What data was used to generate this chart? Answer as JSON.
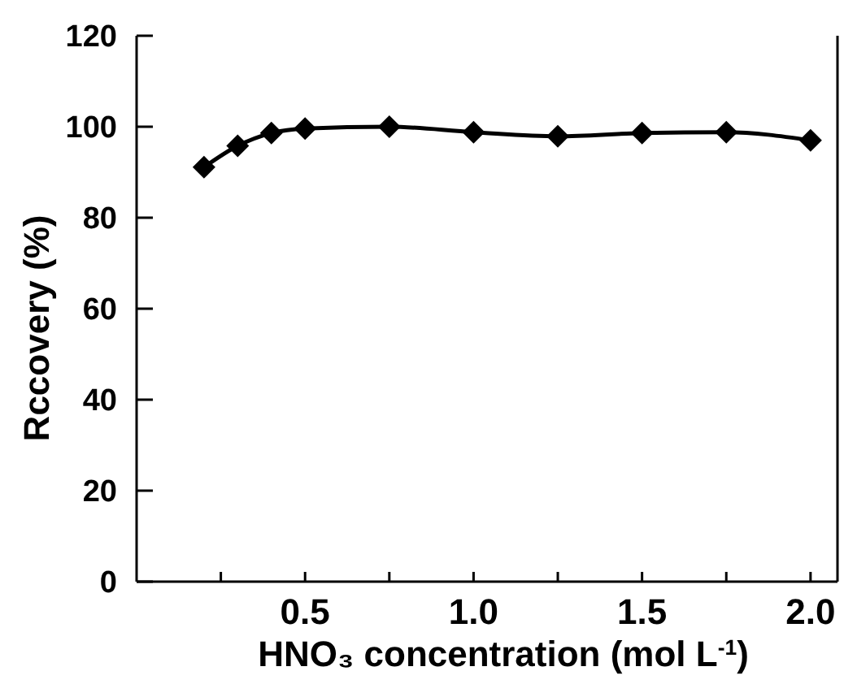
{
  "chart_data": {
    "type": "line",
    "xlabel": "HNO₃ concentration (mol L$^{-1}$)",
    "ylabel": "Rccovery (%)",
    "x": [
      0.2,
      0.3,
      0.4,
      0.5,
      0.75,
      1.0,
      1.25,
      1.5,
      1.75,
      2.0
    ],
    "series": [
      {
        "color": "#000000",
        "values": [
          91.1,
          95.8,
          98.6,
          99.6,
          100,
          98.8,
          97.9,
          98.6,
          98.8,
          97.0
        ]
      }
    ],
    "xlim": [
      0,
      2.08
    ],
    "xticks": [
      {
        "value": 0.25,
        "label": null
      },
      {
        "value": 0.5,
        "label": "0.5"
      },
      {
        "value": 0.75,
        "label": null
      },
      {
        "value": 1.0,
        "label": "1.0"
      },
      {
        "value": 1.25,
        "label": null
      },
      {
        "value": 1.5,
        "label": "1.5"
      },
      {
        "value": 1.75,
        "label": null
      },
      {
        "value": 2.0,
        "label": "2.0"
      }
    ],
    "ylim": [
      0,
      120
    ],
    "yticks": [
      0,
      20,
      40,
      60,
      80,
      100,
      120
    ],
    "grid": false,
    "marker": "diamond",
    "line_style": "solid"
  }
}
